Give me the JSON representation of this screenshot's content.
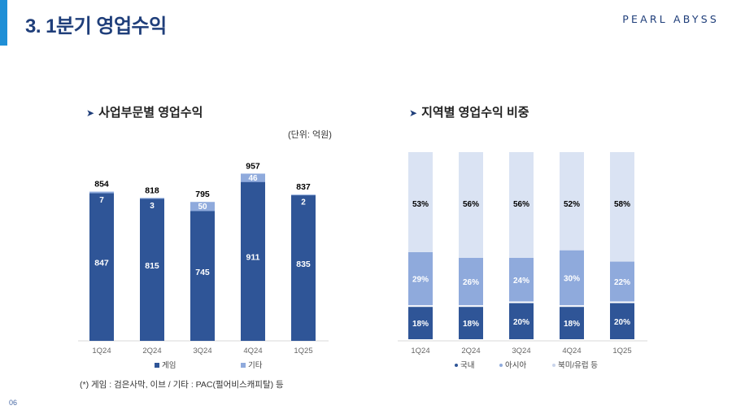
{
  "header": {
    "title": "3. 1분기 영업수익",
    "logo": "PEARL ABYSS"
  },
  "left_section": {
    "title": "사업부문별 영업수익",
    "unit": "(단위: 억원)"
  },
  "right_section": {
    "title": "지역별 영업수익 비중"
  },
  "footnote": "(*) 게임 : 검은사막, 이브 / 기타 : PAC(펄어비스캐피탈) 등",
  "page_number": "06",
  "colors": {
    "dark": "#2f5597",
    "mid": "#8faadc",
    "light": "#dae3f3",
    "accent": "#1f8fd6"
  },
  "chart_data": [
    {
      "type": "bar",
      "stacked": true,
      "categories": [
        "1Q24",
        "2Q24",
        "3Q24",
        "4Q24",
        "1Q25"
      ],
      "series": [
        {
          "name": "게임",
          "values": [
            847,
            815,
            745,
            911,
            835
          ],
          "color": "#2f5597"
        },
        {
          "name": "기타",
          "values": [
            7,
            3,
            50,
            46,
            2
          ],
          "color": "#8faadc"
        }
      ],
      "totals": [
        854,
        818,
        795,
        957,
        837
      ],
      "ylim": [
        0,
        1000
      ],
      "legend": "bottom"
    },
    {
      "type": "bar",
      "stacked": true,
      "percent": true,
      "categories": [
        "1Q24",
        "2Q24",
        "3Q24",
        "4Q24",
        "1Q25"
      ],
      "series": [
        {
          "name": "국내",
          "values": [
            18,
            18,
            20,
            18,
            20
          ],
          "color": "#2f5597"
        },
        {
          "name": "아시아",
          "values": [
            29,
            26,
            24,
            30,
            22
          ],
          "color": "#8faadc"
        },
        {
          "name": "북미/유럽 등",
          "values": [
            53,
            56,
            56,
            52,
            58
          ],
          "color": "#dae3f3"
        }
      ],
      "ylim": [
        0,
        100
      ],
      "legend": "bottom"
    }
  ]
}
